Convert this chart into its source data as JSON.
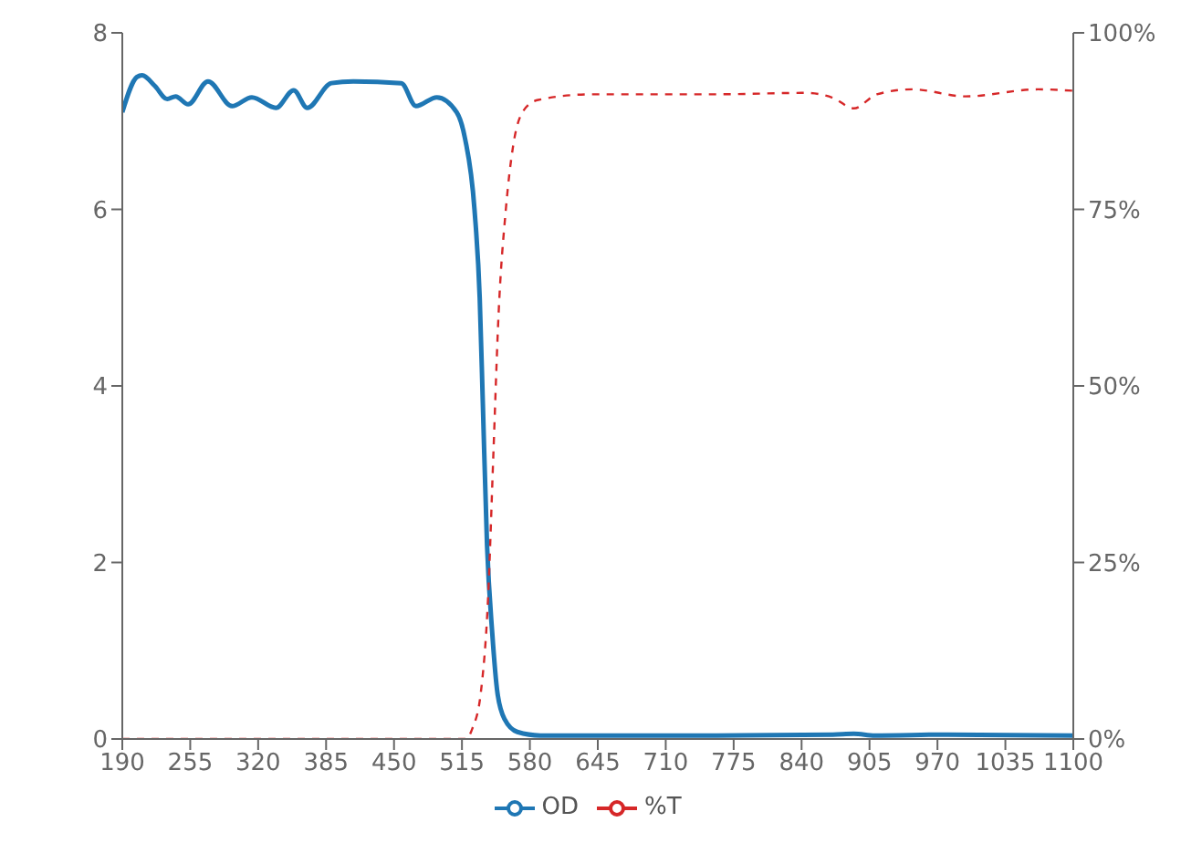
{
  "chart_data": {
    "type": "line",
    "xlim": [
      190,
      1100
    ],
    "xticks": [
      190,
      255,
      320,
      385,
      450,
      515,
      580,
      645,
      710,
      775,
      840,
      905,
      970,
      1035,
      1100
    ],
    "ylim": [
      0,
      8
    ],
    "yticks": [
      0,
      2,
      4,
      6,
      8
    ],
    "y2lim": [
      0,
      100
    ],
    "y2ticks": [
      {
        "value": 0,
        "label": "0%"
      },
      {
        "value": 25,
        "label": "25%"
      },
      {
        "value": 50,
        "label": "50%"
      },
      {
        "value": 75,
        "label": "75%"
      },
      {
        "value": 100,
        "label": "100%"
      }
    ],
    "grid": false,
    "legend": "bottom",
    "marker": "none",
    "series": [
      {
        "name": "OD",
        "color": "#1f77b4",
        "line_style": "solid",
        "x": [
          190,
          204,
          209,
          221,
          233,
          241,
          253,
          272,
          295,
          314,
          337,
          354,
          367,
          390,
          411,
          457,
          471,
          491,
          510,
          518,
          527,
          532,
          535,
          539,
          544,
          549,
          556,
          568,
          590,
          759,
          870,
          890,
          910,
          980,
          1100
        ],
        "values": [
          7.1,
          7.5,
          7.52,
          7.4,
          7.25,
          7.28,
          7.19,
          7.45,
          7.17,
          7.27,
          7.15,
          7.35,
          7.15,
          7.43,
          7.45,
          7.43,
          7.17,
          7.27,
          7.1,
          6.8,
          6.0,
          5.0,
          3.8,
          2.2,
          1.2,
          0.52,
          0.22,
          0.08,
          0.04,
          0.04,
          0.05,
          0.06,
          0.04,
          0.05,
          0.04
        ]
      },
      {
        "name": "%T",
        "color": "#d62728",
        "line_style": "dashed",
        "axis": "y2",
        "x": [
          190,
          519,
          525,
          533,
          540,
          545,
          550,
          557,
          564,
          574,
          588,
          639,
          759,
          844,
          870,
          890,
          912,
          946,
          997,
          1066,
          1100
        ],
        "values": [
          0,
          0,
          1.5,
          6.5,
          20,
          40,
          60,
          75,
          84,
          89,
          90.5,
          91.3,
          91.3,
          91.5,
          90.8,
          89.3,
          91.3,
          92,
          91,
          92,
          91.8
        ]
      }
    ]
  }
}
